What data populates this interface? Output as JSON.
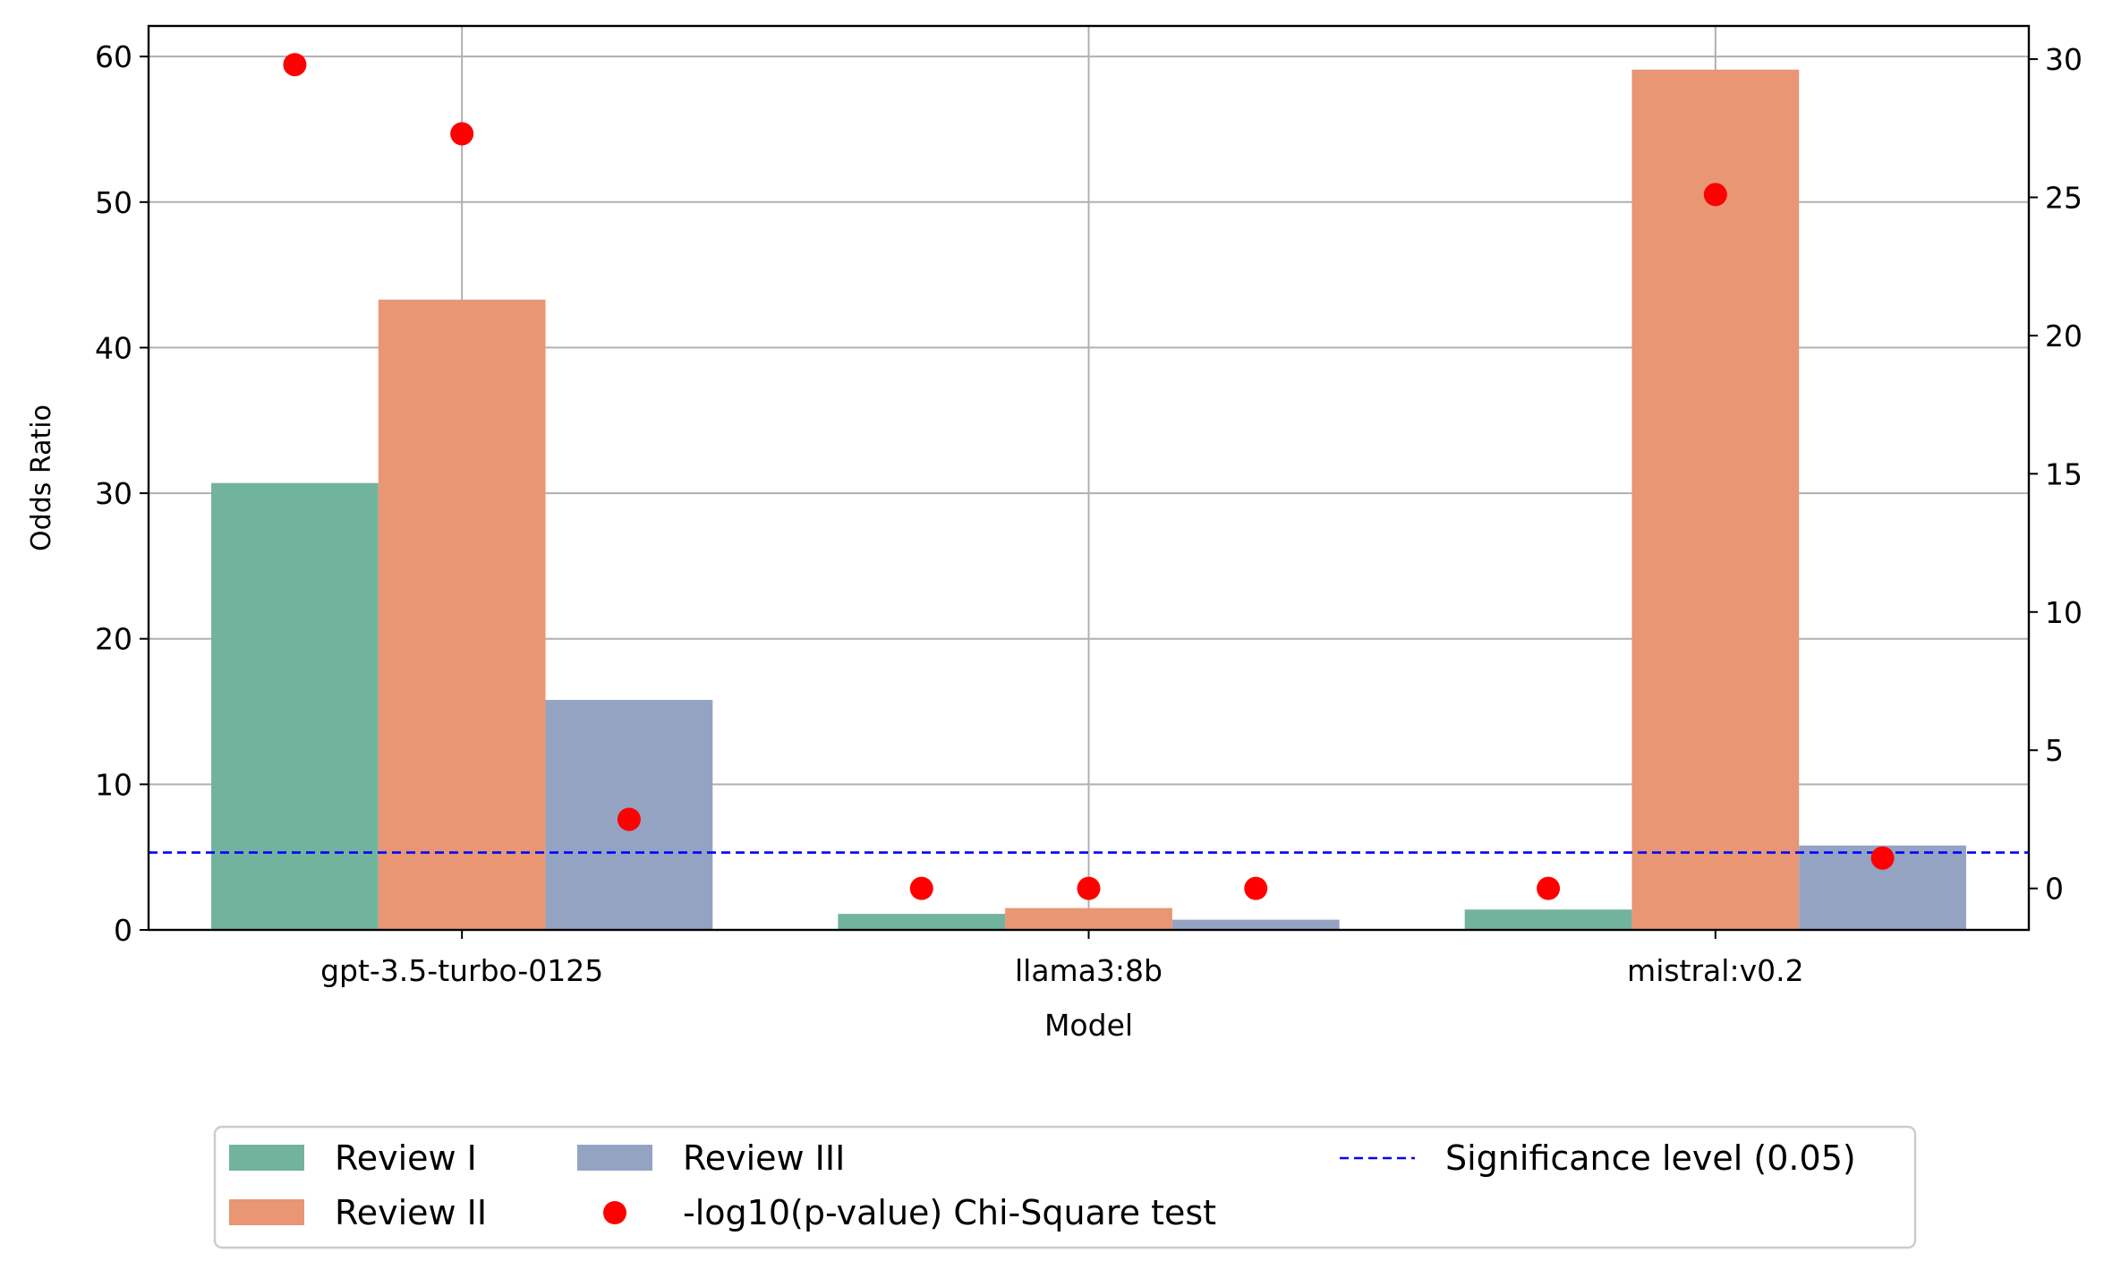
{
  "chart_data": {
    "type": "bar",
    "categories": [
      "gpt-3.5-turbo-0125",
      "llama3:8b",
      "mistral:v0.2"
    ],
    "series": [
      {
        "name": "Review I",
        "values": [
          30.7,
          1.1,
          1.4
        ],
        "color": "#72b39e"
      },
      {
        "name": "Review II",
        "values": [
          43.3,
          1.5,
          59.1
        ],
        "color": "#e89674"
      },
      {
        "name": "Review III",
        "values": [
          15.8,
          0.7,
          5.8
        ],
        "color": "#95a3c3"
      }
    ],
    "scatter_series": {
      "name": "-log10(p-value) Chi-Square test",
      "axis": "right",
      "color": "#ff0000",
      "values": [
        [
          29.8,
          27.3,
          2.5
        ],
        [
          0.0,
          0.0,
          0.0
        ],
        [
          0.0,
          25.1,
          1.1
        ]
      ]
    },
    "reference_line": {
      "name": "Significance level (0.05)",
      "axis": "right",
      "value": 1.3,
      "color": "#0000ff",
      "style": "dashed"
    },
    "xlabel": "Model",
    "ylabel": "Odds Ratio",
    "ylim": [
      0,
      62.1
    ],
    "y_ticks": [
      0,
      10,
      20,
      30,
      40,
      50,
      60
    ],
    "y2lim": [
      -1.5,
      31.2
    ],
    "y2_ticks": [
      0,
      5,
      10,
      15,
      20,
      25,
      30
    ],
    "grid": true,
    "legend": {
      "placement": "bottom-center",
      "columns": [
        [
          "Review I",
          "Review II"
        ],
        [
          "Review III",
          "-log10(p-value) Chi-Square test"
        ],
        [
          "Significance level (0.05)"
        ]
      ]
    }
  }
}
